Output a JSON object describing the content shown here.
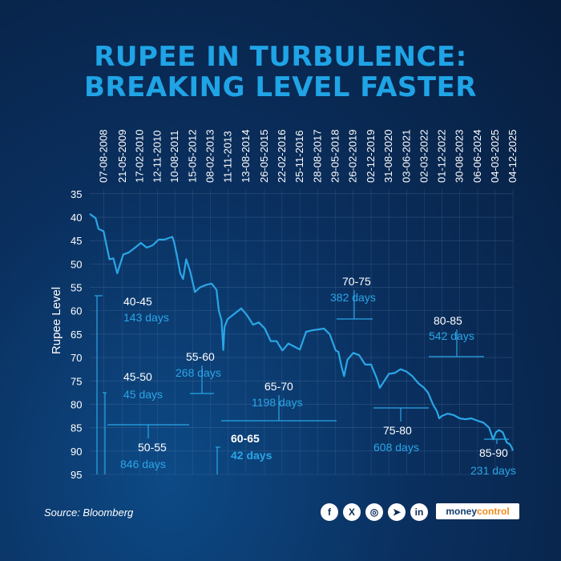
{
  "title_lines": [
    "RUPEE IN TURBULENCE:",
    "BREAKING LEVEL FASTER"
  ],
  "source": "Source: Bloomberg",
  "social_icons": [
    {
      "name": "facebook-icon",
      "glyph": "f"
    },
    {
      "name": "x-icon",
      "glyph": "X"
    },
    {
      "name": "instagram-icon",
      "glyph": "◎"
    },
    {
      "name": "telegram-icon",
      "glyph": "➤"
    },
    {
      "name": "linkedin-icon",
      "glyph": "in"
    }
  ],
  "brand": {
    "part1": "money",
    "part2": "control"
  },
  "colors": {
    "title": "#1fa4e6",
    "line": "#2aa6e6",
    "days": "#2aa6e6",
    "text": "#ffffff"
  },
  "chart_data": {
    "type": "line",
    "ylabel": "Rupee Level",
    "yticks": [
      35,
      40,
      45,
      50,
      55,
      60,
      65,
      70,
      75,
      80,
      85,
      90,
      95
    ],
    "ylim": [
      34,
      95
    ],
    "y_inverted": true,
    "grid": true,
    "date_labels": [
      "07-08-2008",
      "21-05-2009",
      "17-02-2010",
      "12-11-2010",
      "10-08-2011",
      "15-05-2012",
      "08-02-2013",
      "11-11-2013",
      "13-08-2014",
      "26-05-2015",
      "22-02-2016",
      "25-11-2016",
      "28-08-2017",
      "29-05-2018",
      "26-02-2019",
      "02-12-2019",
      "31-08-2020",
      "03-06-2021",
      "02-03-2022",
      "01-12-2022",
      "30-08-2023",
      "06-06-2024",
      "04-03-2025",
      "04-12-2025"
    ],
    "x_start": "2008-01-01",
    "x_end": "2025-12-04",
    "series": [
      {
        "x": [
          "2008-01-01",
          "2008-04-01",
          "2008-05-15",
          "2008-08-01",
          "2008-10-01",
          "2008-11-01",
          "2009-01-01",
          "2009-03-01",
          "2009-06-01",
          "2009-09-01",
          "2009-12-01",
          "2010-03-01",
          "2010-06-01",
          "2010-09-01",
          "2010-12-01",
          "2011-03-01",
          "2011-07-01",
          "2011-08-01",
          "2011-09-15",
          "2011-11-01",
          "2011-12-15",
          "2012-02-01",
          "2012-04-01",
          "2012-06-15",
          "2012-09-01",
          "2012-12-01",
          "2013-03-01",
          "2013-05-15",
          "2013-06-20",
          "2013-08-01",
          "2013-08-28",
          "2013-09-15",
          "2013-11-01",
          "2014-03-01",
          "2014-06-01",
          "2014-09-01",
          "2014-12-01",
          "2015-03-01",
          "2015-06-01",
          "2015-09-01",
          "2015-12-01",
          "2016-02-28",
          "2016-06-01",
          "2016-11-25",
          "2017-03-01",
          "2017-06-01",
          "2017-09-01",
          "2017-12-01",
          "2018-03-01",
          "2018-06-01",
          "2018-07-15",
          "2018-09-01",
          "2018-10-10",
          "2018-12-01",
          "2019-03-01",
          "2019-06-01",
          "2019-09-01",
          "2019-12-01",
          "2020-03-01",
          "2020-04-15",
          "2020-06-01",
          "2020-09-01",
          "2020-12-01",
          "2021-03-01",
          "2021-06-01",
          "2021-09-01",
          "2021-12-01",
          "2022-03-01",
          "2022-05-01",
          "2022-07-15",
          "2022-09-15",
          "2022-10-20",
          "2022-12-01",
          "2023-03-01",
          "2023-06-01",
          "2023-09-01",
          "2023-12-01",
          "2024-03-01",
          "2024-06-01",
          "2024-09-01",
          "2024-12-01",
          "2025-02-01",
          "2025-03-15",
          "2025-05-01",
          "2025-07-01",
          "2025-09-01",
          "2025-10-15",
          "2025-11-15",
          "2025-12-04"
        ],
        "y": [
          39.3,
          40.2,
          42.5,
          43.0,
          47.0,
          49.0,
          48.8,
          52.0,
          48.0,
          47.5,
          46.5,
          45.5,
          46.5,
          46.0,
          44.8,
          44.8,
          44.2,
          45.5,
          48.5,
          52.0,
          53.2,
          49.0,
          51.5,
          56.0,
          55.0,
          54.5,
          54.2,
          55.5,
          60.0,
          62.0,
          68.4,
          63.5,
          61.8,
          60.5,
          59.5,
          61.0,
          63.0,
          62.5,
          63.8,
          66.5,
          66.5,
          68.5,
          67.0,
          68.3,
          64.5,
          64.2,
          64.0,
          63.8,
          65.0,
          68.5,
          68.8,
          72.0,
          74.0,
          70.5,
          69.0,
          69.5,
          71.5,
          71.5,
          74.5,
          76.5,
          75.5,
          73.5,
          73.3,
          72.5,
          73.0,
          74.0,
          75.5,
          76.5,
          77.5,
          80.0,
          81.5,
          83.0,
          82.5,
          82.0,
          82.3,
          83.0,
          83.2,
          83.0,
          83.5,
          83.9,
          85.0,
          87.5,
          86.0,
          85.5,
          86.0,
          88.2,
          88.5,
          89.2,
          89.9
        ]
      }
    ],
    "annotations": [
      {
        "range": "40-45",
        "days": "143 days",
        "bold": false
      },
      {
        "range": "45-50",
        "days": "45 days",
        "bold": false
      },
      {
        "range": "50-55",
        "days": "846 days",
        "bold": false
      },
      {
        "range": "55-60",
        "days": "268 days",
        "bold": false
      },
      {
        "range": "60-65",
        "days": "42 days",
        "bold": true
      },
      {
        "range": "65-70",
        "days": "1198 days",
        "bold": false
      },
      {
        "range": "70-75",
        "days": "382 days",
        "bold": false
      },
      {
        "range": "75-80",
        "days": "608 days",
        "bold": false
      },
      {
        "range": "80-85",
        "days": "542 days",
        "bold": false
      },
      {
        "range": "85-90",
        "days": "231 days",
        "bold": false
      }
    ]
  }
}
